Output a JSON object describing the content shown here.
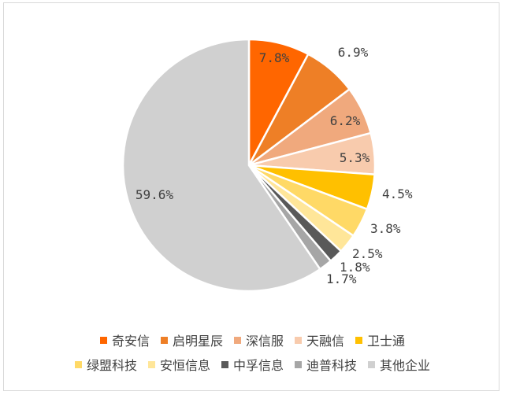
{
  "chart_data": {
    "type": "pie",
    "categories": [
      "奇安信",
      "启明星辰",
      "深信服",
      "天融信",
      "卫士通",
      "绿盟科技",
      "安恒信息",
      "中孚信息",
      "迪普科技",
      "其他企业"
    ],
    "values": [
      7.8,
      6.9,
      6.2,
      5.3,
      4.5,
      3.8,
      2.5,
      1.8,
      1.7,
      59.6
    ],
    "labels": [
      "7.8%",
      "6.9%",
      "6.2%",
      "5.3%",
      "4.5%",
      "3.8%",
      "2.5%",
      "1.8%",
      "1.7%",
      "59.6%"
    ],
    "colors": [
      "#ff6600",
      "#ee7f26",
      "#f0a97d",
      "#f8cbad",
      "#ffc000",
      "#ffd966",
      "#ffe699",
      "#595959",
      "#a6a6a6",
      "#d0d0d0"
    ],
    "legend_position": "bottom",
    "start_angle": "12 o'clock, clockwise"
  }
}
